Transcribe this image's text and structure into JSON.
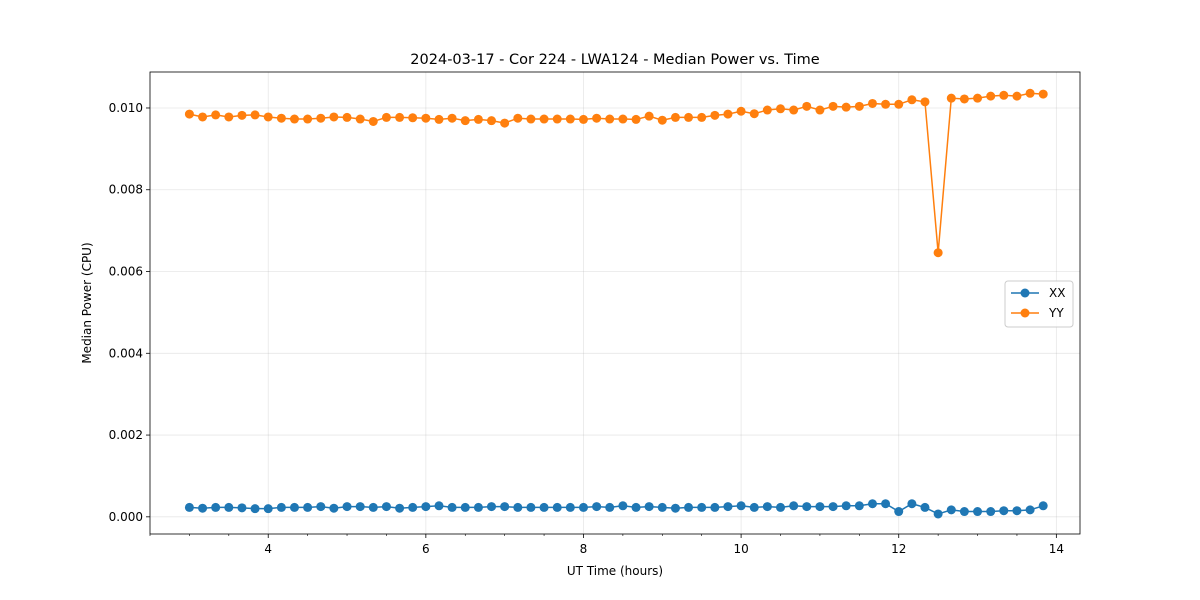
{
  "chart_data": {
    "type": "line",
    "title": "2024-03-17 - Cor 224 - LWA124 - Median Power vs. Time",
    "xlabel": "UT Time (hours)",
    "ylabel": "Median Power (CPU)",
    "xlim": [
      2.5,
      14.3
    ],
    "ylim": [
      -0.00042,
      0.01088
    ],
    "xticks": [
      4,
      6,
      8,
      10,
      12,
      14
    ],
    "xtick_labels": [
      "4",
      "6",
      "8",
      "10",
      "12",
      "14"
    ],
    "yticks": [
      0.0,
      0.002,
      0.004,
      0.006,
      0.008,
      0.01
    ],
    "ytick_labels": [
      "0.000",
      "0.002",
      "0.004",
      "0.006",
      "0.008",
      "0.010"
    ],
    "grid": true,
    "legend_position": "center-right",
    "x": [
      3.0,
      3.167,
      3.333,
      3.5,
      3.667,
      3.833,
      4.0,
      4.167,
      4.333,
      4.5,
      4.667,
      4.833,
      5.0,
      5.167,
      5.333,
      5.5,
      5.667,
      5.833,
      6.0,
      6.167,
      6.333,
      6.5,
      6.667,
      6.833,
      7.0,
      7.167,
      7.333,
      7.5,
      7.667,
      7.833,
      8.0,
      8.167,
      8.333,
      8.5,
      8.667,
      8.833,
      9.0,
      9.167,
      9.333,
      9.5,
      9.667,
      9.833,
      10.0,
      10.167,
      10.333,
      10.5,
      10.667,
      10.833,
      11.0,
      11.167,
      11.333,
      11.5,
      11.667,
      11.833,
      12.0,
      12.167,
      12.333,
      12.5,
      12.667,
      12.833,
      13.0,
      13.167,
      13.333,
      13.5,
      13.667,
      13.833
    ],
    "series": [
      {
        "name": "XX",
        "color": "#1f77b4",
        "values": [
          0.00023,
          0.00021,
          0.00023,
          0.00023,
          0.00022,
          0.0002,
          0.0002,
          0.00023,
          0.00023,
          0.00023,
          0.00025,
          0.00021,
          0.00025,
          0.00025,
          0.00023,
          0.00025,
          0.00021,
          0.00023,
          0.00025,
          0.00027,
          0.00023,
          0.00023,
          0.00023,
          0.00025,
          0.00025,
          0.00023,
          0.00023,
          0.00023,
          0.00023,
          0.00023,
          0.00023,
          0.00025,
          0.00023,
          0.00027,
          0.00023,
          0.00025,
          0.00023,
          0.00021,
          0.00023,
          0.00023,
          0.00023,
          0.00025,
          0.00027,
          0.00023,
          0.00025,
          0.00023,
          0.00027,
          0.00025,
          0.00025,
          0.00025,
          0.00027,
          0.00027,
          0.00032,
          0.00032,
          0.00013,
          0.00032,
          0.00023,
          7e-05,
          0.00017,
          0.00013,
          0.00013,
          0.00013,
          0.00015,
          0.00015,
          0.00017,
          0.00027
        ]
      },
      {
        "name": "YY",
        "color": "#ff7f0e",
        "values": [
          0.00985,
          0.00978,
          0.00983,
          0.00978,
          0.00982,
          0.00983,
          0.00978,
          0.00975,
          0.00973,
          0.00973,
          0.00975,
          0.00978,
          0.00977,
          0.00973,
          0.00967,
          0.00977,
          0.00977,
          0.00976,
          0.00975,
          0.00972,
          0.00975,
          0.00969,
          0.00972,
          0.00969,
          0.00963,
          0.00975,
          0.00973,
          0.00973,
          0.00973,
          0.00973,
          0.00972,
          0.00975,
          0.00973,
          0.00973,
          0.00972,
          0.0098,
          0.0097,
          0.00977,
          0.00977,
          0.00977,
          0.00982,
          0.00985,
          0.00992,
          0.00986,
          0.00995,
          0.00998,
          0.00995,
          0.01004,
          0.00995,
          0.01004,
          0.01002,
          0.01004,
          0.01011,
          0.01009,
          0.01009,
          0.0102,
          0.01015,
          0.00646,
          0.01024,
          0.01022,
          0.01024,
          0.01029,
          0.01031,
          0.01029,
          0.01036,
          0.01034
        ]
      }
    ]
  }
}
